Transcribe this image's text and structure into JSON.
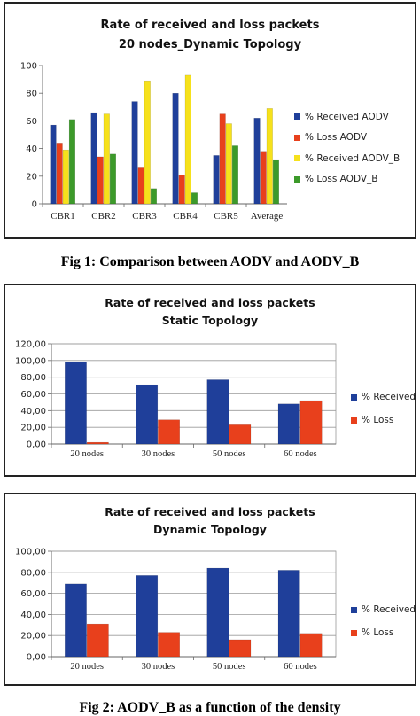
{
  "captions": {
    "fig1": "Fig 1: Comparison between AODV and AODV_B",
    "fig2": "Fig 2: AODV_B as a function of the density"
  },
  "chart_data": [
    {
      "type": "bar",
      "title": "Rate of received and loss packets",
      "subtitle": "20 nodes_Dynamic Topology",
      "categories": [
        "CBR1",
        "CBR2",
        "CBR3",
        "CBR4",
        "CBR5",
        "Average"
      ],
      "series": [
        {
          "name": "% Received AODV",
          "color": "#1f3f9a",
          "values": [
            57,
            66,
            74,
            80,
            35,
            62
          ]
        },
        {
          "name": "% Loss AODV",
          "color": "#e8401c",
          "values": [
            44,
            34,
            26,
            21,
            65,
            38
          ]
        },
        {
          "name": "% Received AODV_B",
          "color": "#f6e11c",
          "values": [
            39,
            65,
            89,
            93,
            58,
            69
          ]
        },
        {
          "name": "% Loss AODV_B",
          "color": "#3c9a2a",
          "values": [
            61,
            36,
            11,
            8,
            42,
            32
          ]
        }
      ],
      "y_ticks": [
        "0",
        "20",
        "40",
        "60",
        "80",
        "100"
      ],
      "ylim": [
        0,
        100
      ],
      "grid": false,
      "legend": "right"
    },
    {
      "type": "bar",
      "title": "Rate of received and loss packets",
      "subtitle": "Static Topology",
      "categories": [
        "20 nodes",
        "30 nodes",
        "50 nodes",
        "60 nodes"
      ],
      "series": [
        {
          "name": "% Received",
          "color": "#1f3f9a",
          "values": [
            98,
            71,
            77,
            48
          ]
        },
        {
          "name": "% Loss",
          "color": "#e8401c",
          "values": [
            2,
            29,
            23,
            52
          ]
        }
      ],
      "y_ticks": [
        "0,00",
        "20,00",
        "40,00",
        "60,00",
        "80,00",
        "100,00",
        "120,00"
      ],
      "ylim": [
        0,
        120
      ],
      "grid": true,
      "legend": "right"
    },
    {
      "type": "bar",
      "title": "Rate of received and loss packets",
      "subtitle": "Dynamic Topology",
      "categories": [
        "20 nodes",
        "30 nodes",
        "50 nodes",
        "60 nodes"
      ],
      "series": [
        {
          "name": "% Received",
          "color": "#1f3f9a",
          "values": [
            69,
            77,
            84,
            82
          ]
        },
        {
          "name": "% Loss",
          "color": "#e8401c",
          "values": [
            31,
            23,
            16,
            22
          ]
        }
      ],
      "y_ticks": [
        "0,00",
        "20,00",
        "40,00",
        "60,00",
        "80,00",
        "100,00"
      ],
      "ylim": [
        0,
        100
      ],
      "grid": true,
      "legend": "right"
    }
  ]
}
